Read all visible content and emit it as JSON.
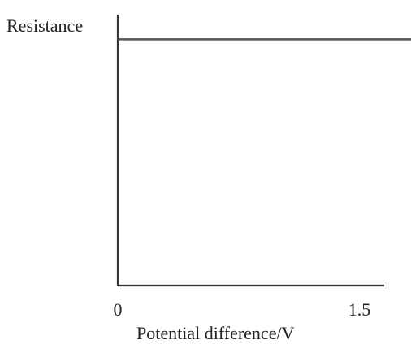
{
  "chart_data": {
    "type": "line",
    "title": "",
    "ylabel": "Resistance",
    "xlabel": "Potential difference/V",
    "x_ticks": [
      {
        "value": 0,
        "label": "0"
      },
      {
        "value": 1.5,
        "label": "1.5"
      }
    ],
    "xlim": [
      0,
      1.82
    ],
    "ylim": [
      0,
      1.1
    ],
    "grid": false,
    "legend": "none",
    "series": [
      {
        "x": [
          0,
          1.82
        ],
        "y": [
          1,
          1
        ]
      }
    ],
    "colors": {
      "axis": "#333333",
      "line": "#555555",
      "text": "#222222"
    }
  }
}
